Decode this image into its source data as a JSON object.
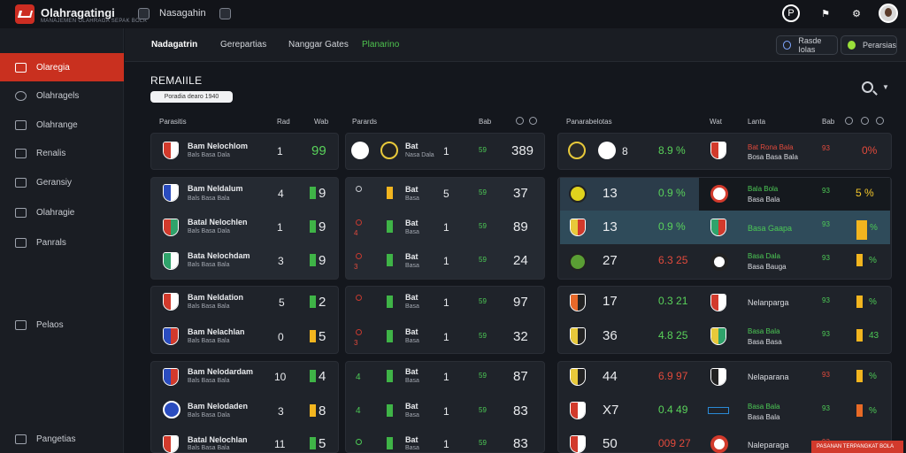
{
  "app": {
    "title": "Olahragatingi",
    "subtitle": "MANAJEMEN OLAHRAGA SEPAK BOLA"
  },
  "topbar": {
    "nav_label": "Nasagahin"
  },
  "sidebar": {
    "items": [
      {
        "label": "Olaregia",
        "active": true
      },
      {
        "label": "Olahragels"
      },
      {
        "label": "Olahrange"
      },
      {
        "label": "Renalis"
      },
      {
        "label": "Geransiy"
      },
      {
        "label": "Olahragie"
      },
      {
        "label": "Panrals"
      },
      {
        "label": "Pelaos"
      }
    ],
    "footer": "Pangetias"
  },
  "tabs": [
    {
      "label": "Nadagatrin"
    },
    {
      "label": "Gerepartias"
    },
    {
      "label": "Nanggar Gates"
    },
    {
      "label": "Planarino"
    }
  ],
  "pills": [
    {
      "label": "Rasde Iolas"
    },
    {
      "label": "Perarsias"
    }
  ],
  "section": {
    "title": "REMAIILE",
    "button": "Poradia dearo 1940"
  },
  "columns": {
    "left": [
      "Parasitis",
      "Rad",
      "Wab",
      "Parards",
      "Bab"
    ],
    "right": [
      "Panarabelotas",
      "Wat",
      "Lanta",
      "Bab"
    ]
  },
  "left_rows": [
    {
      "name": "Bam Nelochlom",
      "sub": "Bals Basa Dala",
      "c1": "1",
      "c2": "99"
    },
    {
      "name": "Bam Neldalum",
      "sub": "Bals Basa Bala",
      "c1": "4",
      "c2": "9"
    },
    {
      "name": "Batal Nelochlen",
      "sub": "Bals Basa Dala",
      "c1": "1",
      "c2": "9"
    },
    {
      "name": "Bata Nelochdam",
      "sub": "Bals Basa Bala",
      "c1": "3",
      "c2": "9"
    },
    {
      "name": "Bam Neldation",
      "sub": "Bals Basa Bala",
      "c1": "5",
      "c2": "2"
    },
    {
      "name": "Bam Nelachlan",
      "sub": "Bals Basa Bala",
      "c1": "0",
      "c2": "5"
    },
    {
      "name": "Bam Nelodardam",
      "sub": "Bals Basa Bala",
      "c1": "10",
      "c2": "4"
    },
    {
      "name": "Bam Nelodaden",
      "sub": "Bals Basa Dala",
      "c1": "3",
      "c2": "8"
    },
    {
      "name": "Batal Nelochlan",
      "sub": "Bals Basa Bala",
      "c1": "11",
      "c2": "5"
    }
  ],
  "mid_rows": [
    {
      "n": "",
      "name": "Bat",
      "sub": "Nasa Dala",
      "c1": "1",
      "c2": "59",
      "c3": "389"
    },
    {
      "n": "",
      "name": "Bat",
      "sub": "Basa",
      "c1": "5",
      "c2": "59",
      "c3": "37"
    },
    {
      "n": "4",
      "name": "Bat",
      "sub": "Basa",
      "c1": "1",
      "c2": "59",
      "c3": "89"
    },
    {
      "n": "3",
      "name": "Bat",
      "sub": "Basa",
      "c1": "1",
      "c2": "59",
      "c3": "24"
    },
    {
      "n": "",
      "name": "Bat",
      "sub": "Basa",
      "c1": "1",
      "c2": "59",
      "c3": "97"
    },
    {
      "n": "3",
      "name": "Bat",
      "sub": "Basa",
      "c1": "1",
      "c2": "59",
      "c3": "32"
    },
    {
      "n": "4",
      "name": "Bat",
      "sub": "Basa",
      "c1": "1",
      "c2": "59",
      "c3": "87"
    },
    {
      "n": "4",
      "name": "Bat",
      "sub": "Basa",
      "c1": "1",
      "c2": "59",
      "c3": "83"
    },
    {
      "n": "",
      "name": "Bat",
      "sub": "Basa",
      "c1": "1",
      "c2": "59",
      "c3": "83"
    }
  ],
  "right_rows": [
    {
      "n": "8",
      "pct": "8.9 %",
      "t1": "Bat Rona Bala",
      "t2": "Bosa Basa Bala",
      "v1": "93",
      "v2": "0%"
    },
    {
      "n": "13",
      "pct": "0.9 %",
      "t1": "Bala Bola",
      "t2": "Basa Bala",
      "v1": "93",
      "v2": "5 %"
    },
    {
      "n": "13",
      "pct": "0.9 %",
      "t1": "Basa Gaapa",
      "t2": "",
      "v1": "93",
      "v2": "%"
    },
    {
      "n": "27",
      "pct": "6.3 25",
      "t1": "Basa Dala",
      "t2": "Basa Bauga",
      "v1": "93",
      "v2": "%"
    },
    {
      "n": "17",
      "pct": "0.3 21",
      "t1": "Nelanparga",
      "t2": "",
      "v1": "93",
      "v2": "%"
    },
    {
      "n": "36",
      "pct": "4.8 25",
      "t1": "Basa Bala",
      "t2": "Basa Basa",
      "v1": "93",
      "v2": "43"
    },
    {
      "n": "44",
      "pct": "6.9 97",
      "t1": "Nelaparana",
      "t2": "",
      "v1": "93",
      "v2": "%"
    },
    {
      "n": "X7",
      "pct": "0.4 49",
      "t1": "Basa Bala",
      "t2": "Basa Bala",
      "v1": "93",
      "v2": "%"
    },
    {
      "n": "50",
      "pct": "009 27",
      "t1": "Naleparaga",
      "t2": "",
      "v1": "93",
      "v2": "%"
    }
  ],
  "footer_tag": "PASANAN TERPANGKAT BOLA",
  "colors": {
    "accent": "#c9301f",
    "positive": "#3fb447",
    "warning": "#f2b51f",
    "negative": "#e24a3c"
  }
}
